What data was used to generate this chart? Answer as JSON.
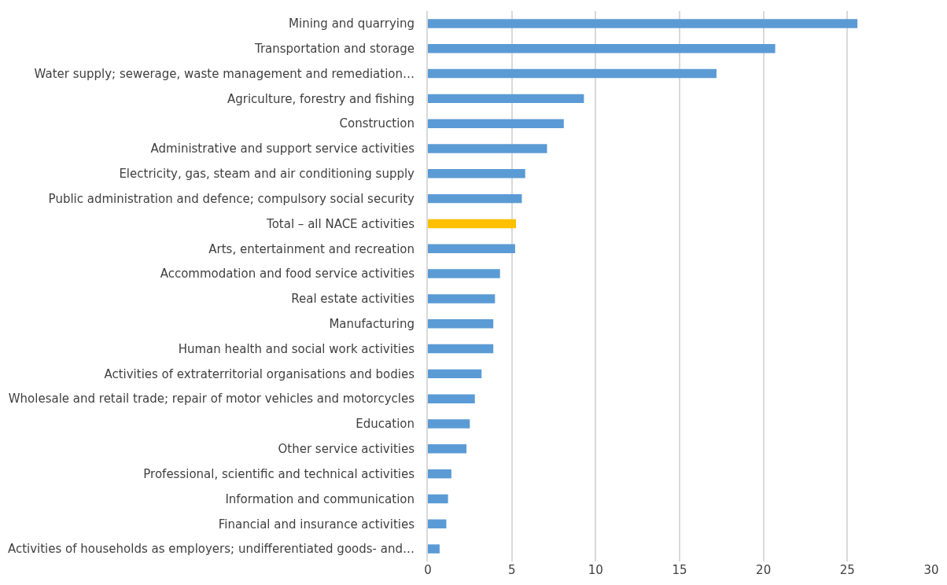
{
  "chart_data": {
    "type": "bar",
    "orientation": "horizontal",
    "categories": [
      "Mining and quarrying",
      "Transportation and storage",
      "Water supply; sewerage, waste management and remediation…",
      "Agriculture, forestry and fishing",
      "Construction",
      "Administrative and support service activities",
      "Electricity, gas, steam and air conditioning supply",
      "Public administration and defence; compulsory social security",
      "Total – all NACE activities",
      "Arts, entertainment and recreation",
      "Accommodation and food service activities",
      "Real estate activities",
      "Manufacturing",
      "Human health and social work activities",
      "Activities of extraterritorial organisations and bodies",
      "Wholesale and retail trade; repair of motor vehicles and motorcycles",
      "Education",
      "Other service activities",
      "Professional, scientific and technical activities",
      "Information and communication",
      "Financial and insurance activities",
      "Activities of households as employers; undifferentiated goods- and…"
    ],
    "values": [
      25.6,
      20.7,
      17.2,
      9.3,
      8.1,
      7.1,
      5.8,
      5.6,
      5.25,
      5.2,
      4.3,
      4.0,
      3.9,
      3.9,
      3.2,
      2.8,
      2.5,
      2.3,
      1.4,
      1.2,
      1.1,
      0.7
    ],
    "colors": [
      "#5b9bd5",
      "#5b9bd5",
      "#5b9bd5",
      "#5b9bd5",
      "#5b9bd5",
      "#5b9bd5",
      "#5b9bd5",
      "#5b9bd5",
      "#ffc000",
      "#5b9bd5",
      "#5b9bd5",
      "#5b9bd5",
      "#5b9bd5",
      "#5b9bd5",
      "#5b9bd5",
      "#5b9bd5",
      "#5b9bd5",
      "#5b9bd5",
      "#5b9bd5",
      "#5b9bd5",
      "#5b9bd5",
      "#5b9bd5"
    ],
    "xlim": [
      0,
      30
    ],
    "xticks": [
      0,
      5,
      10,
      15,
      20,
      25,
      30
    ],
    "grid": "x"
  }
}
